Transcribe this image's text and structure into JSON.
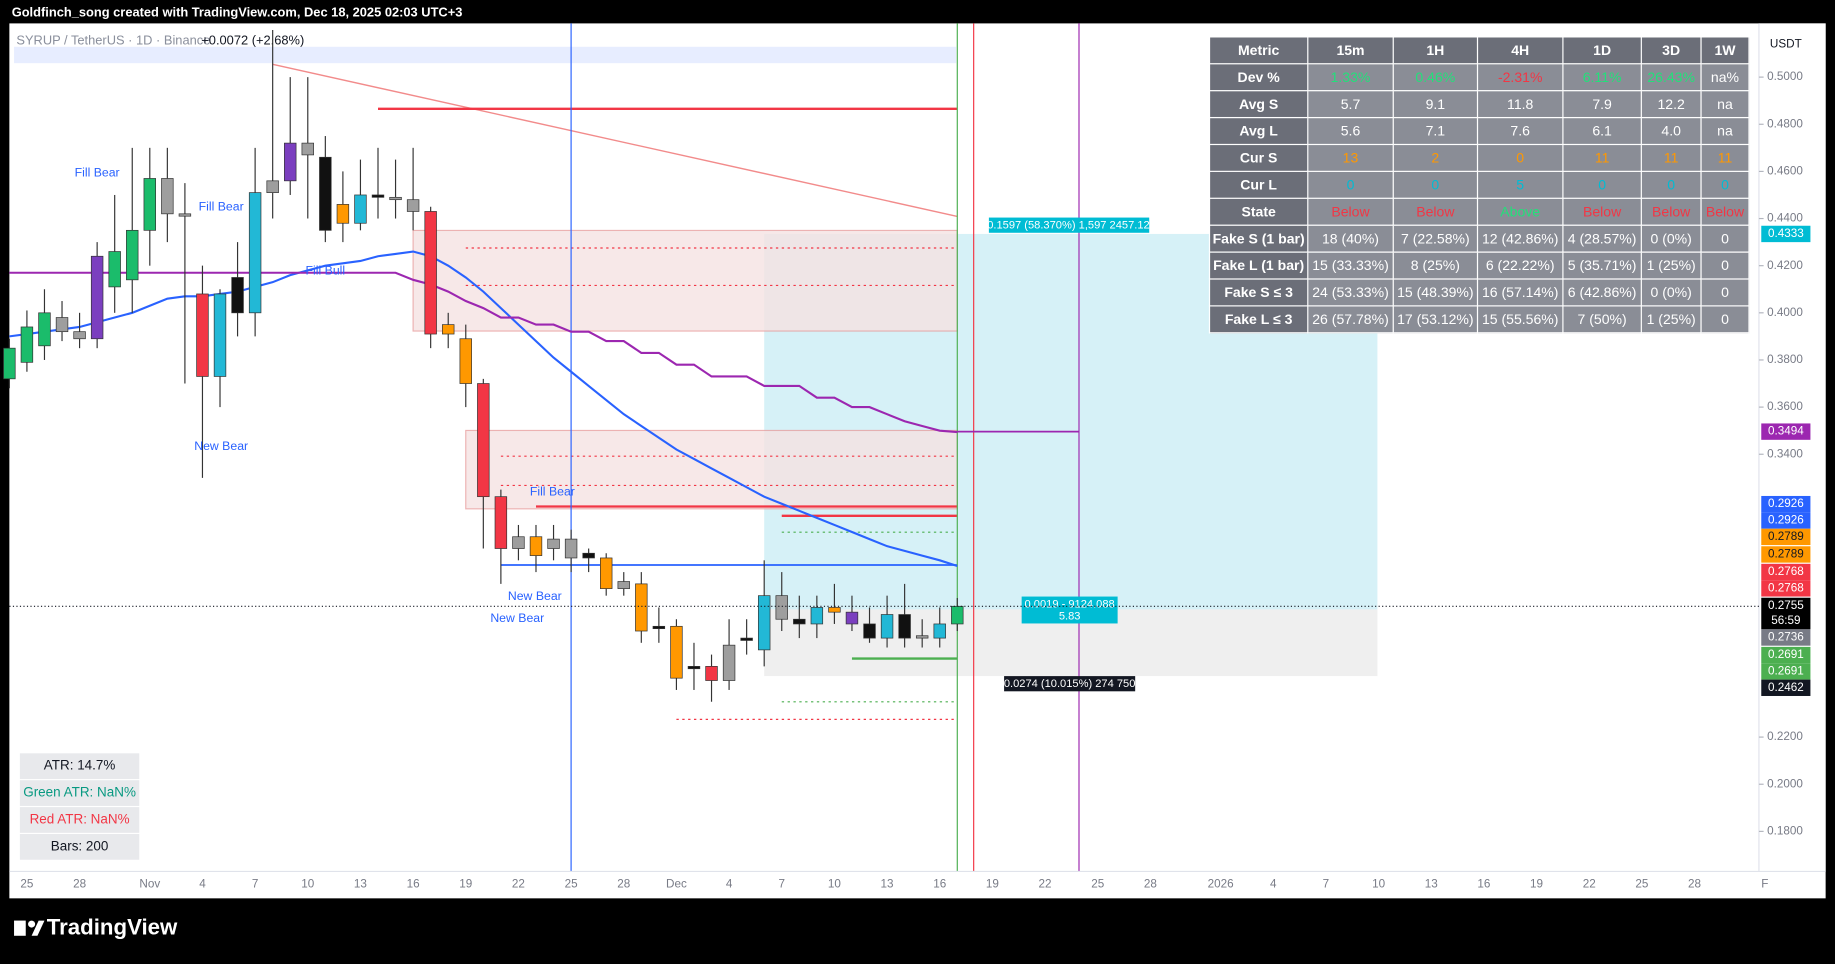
{
  "header": {
    "credit": "Goldfinch_song created with TradingView.com, Dec 18, 2025 02:03 UTC+3",
    "symbol": "SYRUP / TetherUS · 1D · Binance",
    "change": "+0.0072 (+2.68%)",
    "currency": "USDT",
    "brand": "TradingView"
  },
  "chart_data": {
    "type": "candlestick",
    "categories": [
      null,
      "25",
      null,
      null,
      "28",
      null,
      null,
      null,
      "Nov",
      null,
      null,
      "4",
      null,
      null,
      "7",
      null,
      null,
      "10",
      null,
      null,
      "13",
      null,
      null,
      "16",
      null,
      null,
      "19",
      null,
      null,
      "22",
      null,
      null,
      "25",
      null,
      null,
      "28",
      null,
      null,
      "Dec",
      null,
      null,
      "4",
      null,
      null,
      "7",
      null,
      null,
      "10",
      null,
      null,
      "13",
      null,
      null,
      "16",
      null,
      null,
      "19",
      null,
      null,
      "22",
      null,
      null,
      "25",
      null,
      null,
      "28",
      null,
      null,
      null,
      "2026",
      null,
      null,
      "4",
      null,
      null,
      "7",
      null,
      null,
      "10",
      null,
      null,
      "13",
      null,
      null,
      "16",
      null,
      null,
      "19",
      null,
      null,
      "22",
      null,
      null,
      "25",
      null,
      null,
      "28",
      null,
      null,
      null,
      "F"
    ],
    "open": [
      0.372,
      0.379,
      0.386,
      0.398,
      0.392,
      0.389,
      0.411,
      0.414,
      0.435,
      0.457,
      0.442,
      0.408,
      0.373,
      0.415,
      0.4,
      0.451,
      0.456,
      0.472,
      0.466,
      0.438,
      0.438,
      0.45,
      0.449,
      0.448,
      0.443,
      0.391,
      0.389,
      0.37,
      0.322,
      0.3,
      0.305,
      0.3,
      0.304,
      0.298,
      0.296,
      0.283,
      0.285,
      0.266,
      0.267,
      0.25,
      0.25,
      0.244,
      0.261,
      0.257,
      0.28,
      0.27,
      0.268,
      0.275,
      0.273,
      0.268,
      0.262,
      0.272,
      0.263,
      0.262,
      0.268,
      null,
      null,
      null,
      null,
      null,
      null,
      null,
      null,
      null,
      null,
      null,
      null,
      null,
      null,
      null,
      null,
      null,
      null,
      null,
      null,
      null,
      null,
      null,
      null,
      null,
      null,
      null,
      null,
      null,
      null,
      null,
      null,
      null,
      null,
      null,
      null,
      null,
      null,
      null,
      null,
      null,
      null,
      null,
      null,
      null,
      null
    ],
    "high": [
      0.389,
      0.401,
      0.41,
      0.405,
      0.4,
      0.43,
      0.45,
      0.47,
      0.47,
      0.47,
      0.455,
      0.42,
      0.41,
      0.43,
      0.47,
      0.52,
      0.5,
      0.5,
      0.475,
      0.46,
      0.465,
      0.47,
      0.465,
      0.47,
      0.445,
      0.4,
      0.395,
      0.372,
      0.325,
      0.31,
      0.31,
      0.31,
      0.308,
      0.3,
      0.298,
      0.29,
      0.29,
      0.275,
      0.27,
      0.26,
      0.255,
      0.27,
      0.27,
      0.295,
      0.29,
      0.28,
      0.28,
      0.285,
      0.28,
      0.275,
      0.28,
      0.285,
      0.27,
      0.275,
      0.279,
      null,
      null,
      null,
      null,
      null,
      null,
      null,
      null,
      null,
      null,
      null,
      null,
      null,
      null,
      null,
      null,
      null,
      null,
      null,
      null,
      null,
      null,
      null,
      null,
      null,
      null,
      null,
      null,
      null,
      null,
      null,
      null,
      null,
      null,
      null,
      null,
      null,
      null,
      null,
      null,
      null,
      null,
      null,
      null,
      null,
      null
    ],
    "low": [
      0.368,
      0.375,
      0.38,
      0.388,
      0.385,
      0.385,
      0.4,
      0.4,
      0.42,
      0.43,
      0.37,
      0.33,
      0.36,
      0.39,
      0.39,
      0.44,
      0.45,
      0.44,
      0.43,
      0.43,
      0.435,
      0.44,
      0.44,
      0.435,
      0.385,
      0.385,
      0.36,
      0.3,
      0.285,
      0.295,
      0.29,
      0.295,
      0.29,
      0.29,
      0.28,
      0.28,
      0.26,
      0.26,
      0.24,
      0.24,
      0.235,
      0.24,
      0.255,
      0.25,
      0.265,
      0.262,
      0.262,
      0.268,
      0.265,
      0.26,
      0.258,
      0.258,
      0.258,
      0.258,
      0.265,
      null,
      null,
      null,
      null,
      null,
      null,
      null,
      null,
      null,
      null,
      null,
      null,
      null,
      null,
      null,
      null,
      null,
      null,
      null,
      null,
      null,
      null,
      null,
      null,
      null,
      null,
      null,
      null,
      null,
      null,
      null,
      null,
      null,
      null,
      null,
      null,
      null,
      null,
      null,
      null,
      null,
      null,
      null,
      null,
      null,
      null
    ],
    "close": [
      0.385,
      0.394,
      0.4,
      0.392,
      0.389,
      0.424,
      0.426,
      0.435,
      0.457,
      0.442,
      0.441,
      0.373,
      0.408,
      0.4,
      0.451,
      0.456,
      0.472,
      0.467,
      0.435,
      0.446,
      0.45,
      0.449,
      0.448,
      0.443,
      0.391,
      0.395,
      0.37,
      0.322,
      0.3,
      0.305,
      0.297,
      0.304,
      0.296,
      0.296,
      0.283,
      0.286,
      0.265,
      0.267,
      0.245,
      0.249,
      0.244,
      0.259,
      0.262,
      0.28,
      0.27,
      0.268,
      0.275,
      0.273,
      0.268,
      0.262,
      0.272,
      0.262,
      0.262,
      0.268,
      0.2755,
      null,
      null,
      null,
      null,
      null,
      null,
      null,
      null,
      null,
      null,
      null,
      null,
      null,
      null,
      null,
      null,
      null,
      null,
      null,
      null,
      null,
      null,
      null,
      null,
      null,
      null,
      null,
      null,
      null,
      null,
      null,
      null,
      null,
      null,
      null,
      null,
      null,
      null,
      null,
      null,
      null,
      null,
      null,
      null,
      null,
      null
    ],
    "candle_colors": [
      "#1bbc6b",
      "#1bbc6b",
      "#1bbc6b",
      "#9e9e9e",
      "#9e9e9e",
      "#7b3fbf",
      "#1bbc6b",
      "#1bbc6b",
      "#1bbc6b",
      "#9e9e9e",
      "#9e9e9e",
      "#f23645",
      "#22b8d6",
      "#111111",
      "#22b8d6",
      "#9e9e9e",
      "#7b3fbf",
      "#9e9e9e",
      "#111111",
      "#ff9800",
      "#22b8d6",
      "#111111",
      "#9e9e9e",
      "#9e9e9e",
      "#f23645",
      "#ff9800",
      "#ff9800",
      "#f23645",
      "#f23645",
      "#9e9e9e",
      "#ff9800",
      "#9e9e9e",
      "#9e9e9e",
      "#111111",
      "#ff9800",
      "#9e9e9e",
      "#ff9800",
      "#111111",
      "#ff9800",
      "#111111",
      "#f23645",
      "#9e9e9e",
      "#111111",
      "#22b8d6",
      "#9e9e9e",
      "#111111",
      "#22b8d6",
      "#ff9800",
      "#7b3fbf",
      "#111111",
      "#22b8d6",
      "#111111",
      "#9e9e9e",
      "#22b8d6",
      "#1bbc6b",
      null,
      null,
      null,
      null,
      null,
      null,
      null,
      null,
      null,
      null,
      null,
      null,
      null,
      null,
      null,
      null,
      null,
      null,
      null,
      null,
      null,
      null,
      null,
      null,
      null,
      null,
      null,
      null,
      null,
      null,
      null,
      null,
      null,
      null,
      null,
      null,
      null,
      null,
      null,
      null,
      null,
      null,
      null,
      null,
      null,
      null
    ],
    "lines": [
      {
        "color": "#2962ff",
        "values": [
          0.39,
          0.391,
          0.392,
          0.393,
          0.394,
          0.396,
          0.398,
          0.4,
          0.403,
          0.406,
          0.407,
          0.407,
          0.408,
          0.409,
          0.411,
          0.413,
          0.416,
          0.418,
          0.42,
          0.421,
          0.422,
          0.424,
          0.425,
          0.426,
          0.424,
          0.42,
          0.415,
          0.409,
          0.402,
          0.395,
          0.388,
          0.381,
          0.375,
          0.369,
          0.363,
          0.357,
          0.352,
          0.347,
          0.342,
          0.338,
          0.334,
          0.33,
          0.326,
          0.322,
          0.319,
          0.316,
          0.313,
          0.31,
          0.307,
          0.304,
          0.301,
          0.299,
          0.297,
          0.295,
          0.2926,
          null,
          null,
          null,
          null,
          null,
          null,
          null,
          null,
          null,
          null,
          null,
          null,
          null,
          null,
          null,
          null,
          null,
          null,
          null,
          null,
          null,
          null,
          null,
          null,
          null,
          null,
          null,
          null,
          null,
          null,
          null,
          null,
          null,
          null,
          null,
          null,
          null,
          null,
          null,
          null,
          null,
          null,
          null,
          null,
          null,
          null
        ]
      },
      {
        "color": "#9c27b0",
        "values": [
          0.417,
          0.417,
          0.417,
          0.417,
          0.417,
          0.417,
          0.417,
          0.417,
          0.417,
          0.417,
          0.417,
          0.417,
          0.417,
          0.417,
          0.417,
          0.417,
          0.417,
          0.417,
          0.417,
          0.417,
          0.417,
          0.417,
          0.417,
          0.414,
          0.412,
          0.409,
          0.405,
          0.402,
          0.398,
          0.398,
          0.395,
          0.395,
          0.392,
          0.392,
          0.388,
          0.388,
          0.383,
          0.383,
          0.378,
          0.378,
          0.373,
          0.373,
          0.373,
          0.369,
          0.369,
          0.369,
          0.364,
          0.364,
          0.36,
          0.36,
          0.357,
          0.354,
          0.352,
          0.35,
          0.3494,
          null,
          null,
          null,
          null,
          null,
          null,
          null,
          null,
          null,
          null,
          null,
          null,
          null,
          null,
          null,
          null,
          null,
          null,
          null,
          null,
          null,
          null,
          null,
          null,
          null,
          null,
          null,
          null,
          null,
          null,
          null,
          null,
          null,
          null,
          null,
          null,
          null,
          null,
          null,
          null,
          null,
          null,
          null,
          null,
          null,
          null
        ]
      }
    ],
    "ylim": [
      0.163,
      0.5218
    ],
    "yticks": [
      {
        "value": 0.5,
        "label": "0.5000"
      },
      {
        "value": 0.48,
        "label": "0.4800"
      },
      {
        "value": 0.46,
        "label": "0.4600"
      },
      {
        "value": 0.44,
        "label": "0.4400"
      },
      {
        "value": 0.42,
        "label": "0.4200"
      },
      {
        "value": 0.4,
        "label": "0.4000"
      },
      {
        "value": 0.38,
        "label": "0.3800"
      },
      {
        "value": 0.36,
        "label": "0.3600"
      },
      {
        "value": 0.34,
        "label": "0.3400"
      },
      {
        "value": 0.22,
        "label": "0.2200"
      },
      {
        "value": 0.2,
        "label": "0.2000"
      },
      {
        "value": 0.18,
        "label": "0.1800"
      }
    ],
    "grid": false
  },
  "price_labels": [
    {
      "value": 0.4333,
      "color": "#00bcd4"
    },
    {
      "value": 0.3494,
      "color": "#9c27b0"
    },
    {
      "value": 0.2926,
      "color": "#2962ff"
    },
    {
      "value": 0.2926,
      "color": "#2962ff"
    },
    {
      "value": 0.2789,
      "color": "#ff9800"
    },
    {
      "value": 0.2789,
      "color": "#ff9800"
    },
    {
      "value": 0.2768,
      "color": "#f23645"
    },
    {
      "value": 0.2768,
      "color": "#f23645"
    },
    {
      "value": 0.2755,
      "color": "#000000"
    },
    {
      "value": 0.2736,
      "color": "#787b86"
    },
    {
      "value": 0.2691,
      "color": "#4caf50"
    },
    {
      "value": 0.2691,
      "color": "#4caf50"
    },
    {
      "value": 0.2462,
      "color": "#131722"
    }
  ],
  "countdown": "56:59",
  "markers": [
    "Fill Bear",
    "Fill Bear",
    "New Bear",
    "New Bear",
    "New Bear",
    "Fill Bear",
    "Fill Bull"
  ],
  "position_tool": {
    "target": "0.1597 (58.370%) 1,597 2457.12",
    "entry": "0.0019 - 9124.088",
    "qty": "5.83",
    "stop": "0.0274 (10.015%) 274 750"
  },
  "stats": [
    "ATR: 14.7%",
    "Green ATR: NaN%",
    "Red ATR: NaN%",
    "Bars: 200"
  ],
  "table": {
    "header": [
      "Metric",
      "15m",
      "1H",
      "4H",
      "1D",
      "3D",
      "1W"
    ],
    "rows": [
      [
        "Dev %",
        "1.33%",
        "0.46%",
        "-2.31%",
        "6.11%",
        "26.43%",
        "na%"
      ],
      [
        "Avg S",
        "5.7",
        "9.1",
        "11.8",
        "7.9",
        "12.2",
        "na"
      ],
      [
        "Avg L",
        "5.6",
        "7.1",
        "7.6",
        "6.1",
        "4.0",
        "na"
      ],
      [
        "Cur S",
        "13",
        "2",
        "0",
        "11",
        "11",
        "11"
      ],
      [
        "Cur L",
        "0",
        "0",
        "5",
        "0",
        "0",
        "0"
      ],
      [
        "State",
        "Below",
        "Below",
        "Above",
        "Below",
        "Below",
        "Below"
      ],
      [
        "Fake S (1 bar)",
        "18 (40%)",
        "7 (22.58%)",
        "12 (42.86%)",
        "4 (28.57%)",
        "0 (0%)",
        "0"
      ],
      [
        "Fake L (1 bar)",
        "15 (33.33%)",
        "8 (25%)",
        "6 (22.22%)",
        "5 (35.71%)",
        "1 (25%)",
        "0"
      ],
      [
        "Fake S ≤ 3",
        "24 (53.33%)",
        "15 (48.39%)",
        "16 (57.14%)",
        "6 (42.86%)",
        "0 (0%)",
        "0"
      ],
      [
        "Fake L ≤ 3",
        "26 (57.78%)",
        "17 (53.12%)",
        "15 (55.56%)",
        "7 (50%)",
        "1 (25%)",
        "0"
      ]
    ]
  }
}
